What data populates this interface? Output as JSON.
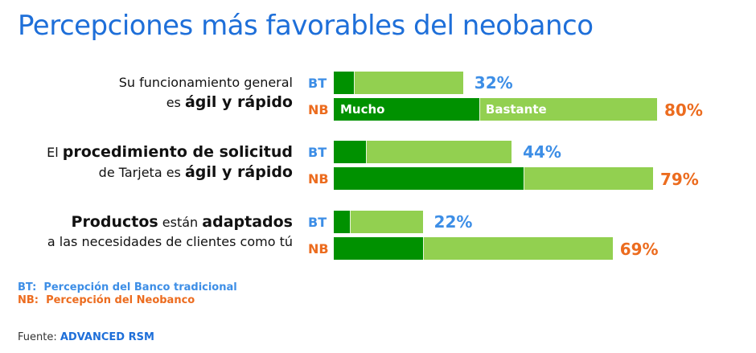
{
  "chart_data": {
    "type": "bar",
    "orientation": "horizontal",
    "stacked": true,
    "title": "Percepciones más favorables del neobanco",
    "segment_labels": [
      "Mucho",
      "Bastante"
    ],
    "colors": {
      "Mucho": "#009100",
      "Bastante": "#92d050",
      "BT": "#3d8ee6",
      "NB": "#ec6c1f"
    },
    "categories": [
      {
        "label_lines": [
          [
            {
              "t": "Su funcionamiento general",
              "b": false
            }
          ],
          [
            {
              "t": "es ",
              "b": false
            },
            {
              "t": "ágil y rápido",
              "b": true
            }
          ]
        ],
        "bars": [
          {
            "group": "BT",
            "mucho": 5,
            "bastante": 27,
            "total": "32%"
          },
          {
            "group": "NB",
            "mucho": 36,
            "bastante": 44,
            "total": "80%"
          }
        ]
      },
      {
        "label_lines": [
          [
            {
              "t": "El ",
              "b": false
            },
            {
              "t": "procedimiento de solicitud",
              "b": true
            }
          ],
          [
            {
              "t": "de Tarjeta es ",
              "b": false
            },
            {
              "t": "ágil y rápido",
              "b": true
            }
          ]
        ],
        "bars": [
          {
            "group": "BT",
            "mucho": 8,
            "bastante": 36,
            "total": "44%"
          },
          {
            "group": "NB",
            "mucho": 47,
            "bastante": 32,
            "total": "79%"
          }
        ]
      },
      {
        "label_lines": [
          [
            {
              "t": "Productos",
              "b": true
            },
            {
              "t": " están ",
              "b": false
            },
            {
              "t": "adaptados",
              "b": true
            }
          ],
          [
            {
              "t": "a las necesidades de clientes como tú",
              "b": false
            }
          ]
        ],
        "bars": [
          {
            "group": "BT",
            "mucho": 4,
            "bastante": 18,
            "total": "22%"
          },
          {
            "group": "NB",
            "mucho": 22,
            "bastante": 47,
            "total": "69%"
          }
        ]
      }
    ],
    "legend": [
      {
        "key": "BT:",
        "text": "Percepción del Banco tradicional"
      },
      {
        "key": "NB:",
        "text": "Percepción del Neobanco"
      }
    ],
    "source_label": "Fuente:",
    "source": "ADVANCED RSM"
  }
}
